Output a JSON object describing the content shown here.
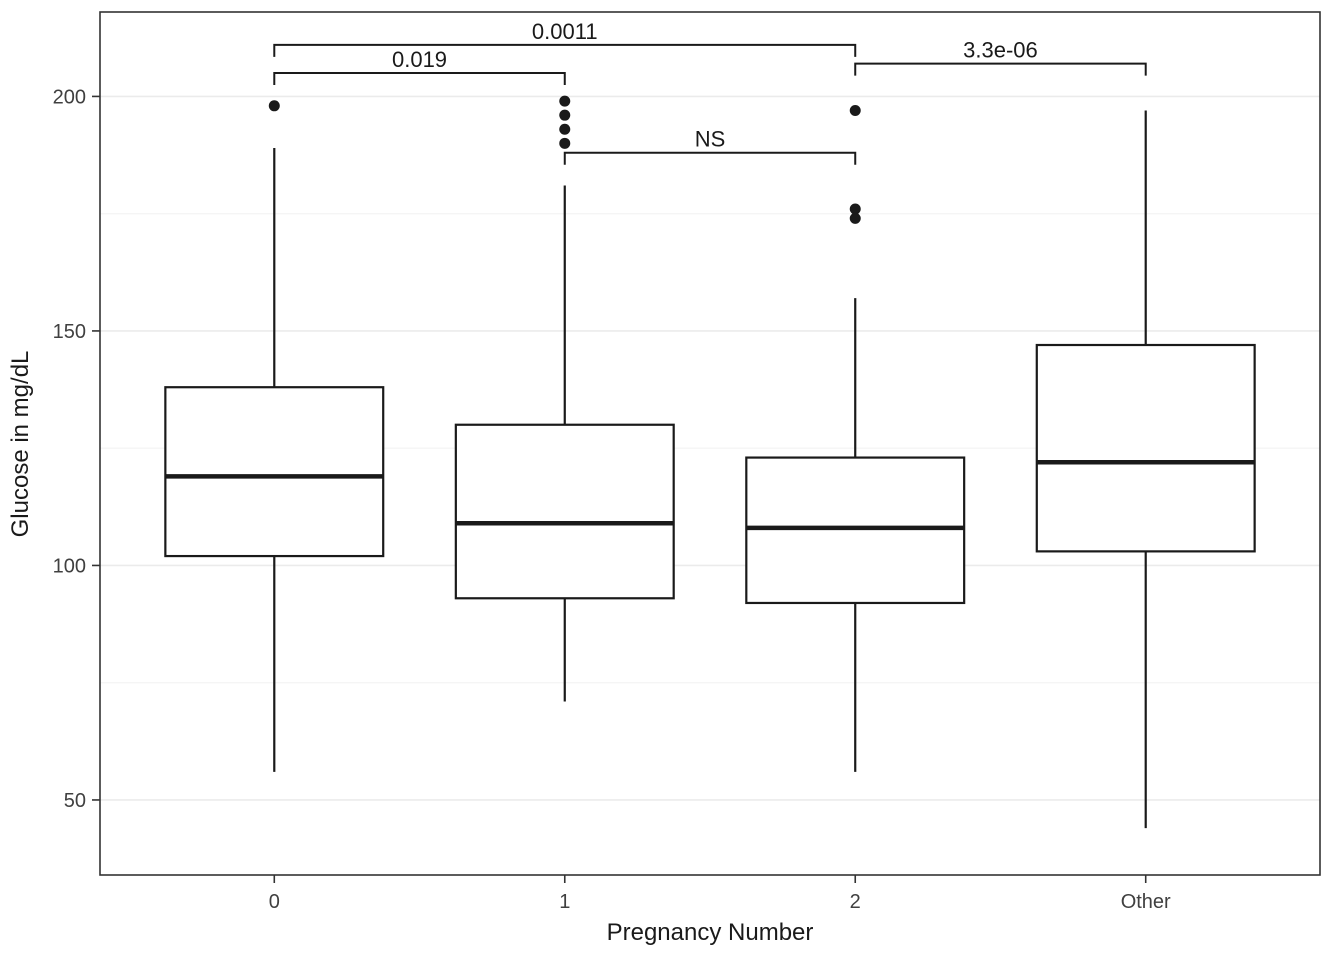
{
  "chart_data": {
    "type": "boxplot",
    "title": "",
    "xlabel": "Pregnancy Number",
    "ylabel": "Glucose in mg/dL",
    "categories": [
      "0",
      "1",
      "2",
      "Other"
    ],
    "ylim": [
      34,
      218
    ],
    "yticks": [
      50,
      100,
      150,
      200
    ],
    "grid": "on",
    "legend": "none",
    "boxes": [
      {
        "category": "0",
        "whisker_low": 56,
        "q1": 102,
        "median": 119,
        "q3": 138,
        "whisker_high": 189,
        "outliers": [
          198
        ]
      },
      {
        "category": "1",
        "whisker_low": 71,
        "q1": 93,
        "median": 109,
        "q3": 130,
        "whisker_high": 181,
        "outliers": [
          199,
          196,
          193,
          190
        ]
      },
      {
        "category": "2",
        "whisker_low": 56,
        "q1": 92,
        "median": 108,
        "q3": 123,
        "whisker_high": 157,
        "outliers": [
          197,
          176,
          174
        ]
      },
      {
        "category": "Other",
        "whisker_low": 44,
        "q1": 103,
        "median": 122,
        "q3": 147,
        "whisker_high": 197,
        "outliers": []
      }
    ],
    "comparisons": [
      {
        "group1": "0",
        "group2": "1",
        "label": "0.019",
        "y": 205
      },
      {
        "group1": "0",
        "group2": "2",
        "label": "0.0011",
        "y": 211
      },
      {
        "group1": "1",
        "group2": "2",
        "label": "NS",
        "y": 188
      },
      {
        "group1": "2",
        "group2": "Other",
        "label": "3.3e-06",
        "y": 207
      }
    ],
    "colors": {
      "background": "#ffffff",
      "panel_border": "#333333",
      "grid_major": "#ebebeb",
      "grid_minor": "#f5f5f5",
      "box_stroke": "#1a1a1a",
      "box_fill": "#ffffff",
      "tick_text": "#404040",
      "title_text": "#1a1a1a"
    }
  }
}
